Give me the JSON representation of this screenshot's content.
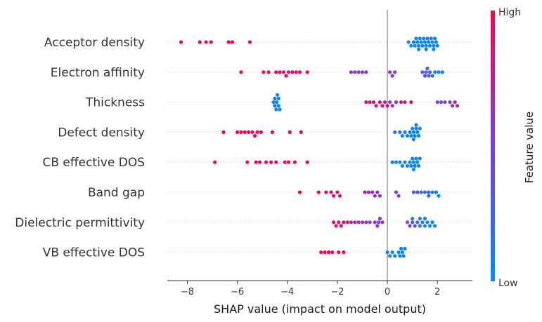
{
  "chart_data": {
    "type": "scatter",
    "subtype": "shap-beeswarm",
    "xlabel": "SHAP value (impact on model output)",
    "xlim": [
      -8.8,
      3.4
    ],
    "xticks": [
      -8,
      -6,
      -4,
      -2,
      0,
      2
    ],
    "x_tick_labels": [
      "−8",
      "−6",
      "−4",
      "−2",
      "0",
      "2"
    ],
    "zero_line": true,
    "colorbar": {
      "title": "Feature value",
      "high_label": "High",
      "low_label": "Low",
      "low_color": "#008bfb",
      "mid_color": "#7c3ee0",
      "high_color": "#ff0052"
    },
    "features": [
      {
        "name": "Acceptor density",
        "points": [
          [
            -8.25,
            1.0
          ],
          [
            -7.5,
            1.0
          ],
          [
            -7.25,
            0.95
          ],
          [
            -7.05,
            0.95
          ],
          [
            -6.35,
            1.0
          ],
          [
            -6.2,
            1.0
          ],
          [
            -5.5,
            1.0
          ],
          [
            0.85,
            0.05
          ],
          [
            0.95,
            0.0
          ],
          [
            1.05,
            0.1
          ],
          [
            1.1,
            0.05
          ],
          [
            1.15,
            0.0
          ],
          [
            1.2,
            0.05
          ],
          [
            1.25,
            0.1
          ],
          [
            1.3,
            0.0
          ],
          [
            1.35,
            0.05
          ],
          [
            1.4,
            0.0
          ],
          [
            1.45,
            0.1
          ],
          [
            1.5,
            0.05
          ],
          [
            1.55,
            0.0
          ],
          [
            1.6,
            0.05
          ],
          [
            1.65,
            0.1
          ],
          [
            1.7,
            0.0
          ],
          [
            1.75,
            0.05
          ],
          [
            1.8,
            0.0
          ],
          [
            1.85,
            0.1
          ],
          [
            1.9,
            0.05
          ],
          [
            1.95,
            0.0
          ],
          [
            2.0,
            0.05
          ],
          [
            1.25,
            0.02
          ],
          [
            1.55,
            0.08
          ],
          [
            1.85,
            0.03
          ]
        ]
      },
      {
        "name": "Electron affinity",
        "points": [
          [
            -5.85,
            1.0
          ],
          [
            -4.95,
            1.0
          ],
          [
            -4.75,
            0.95
          ],
          [
            -4.45,
            0.9
          ],
          [
            -4.3,
            0.95
          ],
          [
            -4.15,
            0.9
          ],
          [
            -4.05,
            0.95
          ],
          [
            -3.95,
            0.9
          ],
          [
            -3.8,
            0.95
          ],
          [
            -3.65,
            0.9
          ],
          [
            -3.5,
            0.95
          ],
          [
            -3.2,
            1.0
          ],
          [
            -1.45,
            0.6
          ],
          [
            -1.3,
            0.6
          ],
          [
            -1.15,
            0.6
          ],
          [
            -1.0,
            0.6
          ],
          [
            -0.85,
            0.6
          ],
          [
            0.1,
            0.55
          ],
          [
            0.2,
            0.55
          ],
          [
            0.3,
            0.5
          ],
          [
            1.4,
            0.3
          ],
          [
            1.5,
            0.35
          ],
          [
            1.6,
            0.4
          ],
          [
            1.65,
            0.25
          ],
          [
            1.7,
            0.3
          ],
          [
            1.8,
            0.2
          ],
          [
            1.9,
            0.1
          ],
          [
            2.05,
            0.0
          ],
          [
            2.2,
            0.05
          ],
          [
            1.55,
            0.3
          ]
        ]
      },
      {
        "name": "Thickness",
        "points": [
          [
            -4.55,
            0.05
          ],
          [
            -4.5,
            0.05
          ],
          [
            -4.45,
            0.05
          ],
          [
            -4.4,
            0.05
          ],
          [
            -4.35,
            0.05
          ],
          [
            -4.3,
            0.05
          ],
          [
            -4.5,
            0.08
          ],
          [
            -4.35,
            0.08
          ],
          [
            -4.42,
            0.02
          ],
          [
            -0.85,
            0.9
          ],
          [
            -0.7,
            0.9
          ],
          [
            -0.55,
            0.9
          ],
          [
            -0.45,
            0.85
          ],
          [
            -0.3,
            0.9
          ],
          [
            -0.2,
            0.9
          ],
          [
            -0.1,
            0.85
          ],
          [
            0.0,
            0.9
          ],
          [
            0.1,
            0.5
          ],
          [
            0.2,
            0.55
          ],
          [
            0.35,
            0.6
          ],
          [
            0.55,
            0.75
          ],
          [
            0.7,
            0.8
          ],
          [
            0.95,
            0.95
          ],
          [
            2.0,
            0.45
          ],
          [
            2.15,
            0.4
          ],
          [
            2.3,
            0.45
          ],
          [
            2.5,
            0.55
          ],
          [
            2.6,
            0.6
          ],
          [
            2.7,
            0.65
          ],
          [
            2.8,
            0.7
          ]
        ]
      },
      {
        "name": "Defect density",
        "points": [
          [
            -6.55,
            1.0
          ],
          [
            -6.0,
            1.0
          ],
          [
            -5.85,
            1.0
          ],
          [
            -5.7,
            0.95
          ],
          [
            -5.55,
            0.95
          ],
          [
            -5.4,
            0.95
          ],
          [
            -5.3,
            1.0
          ],
          [
            -5.2,
            1.0
          ],
          [
            -5.05,
            1.0
          ],
          [
            -4.6,
            1.0
          ],
          [
            -3.9,
            1.0
          ],
          [
            -3.45,
            1.0
          ],
          [
            0.3,
            0.05
          ],
          [
            0.5,
            0.05
          ],
          [
            0.6,
            0.05
          ],
          [
            0.7,
            0.05
          ],
          [
            0.8,
            0.0
          ],
          [
            0.9,
            0.05
          ],
          [
            1.0,
            0.05
          ],
          [
            1.05,
            0.0
          ],
          [
            1.1,
            0.05
          ],
          [
            1.15,
            0.05
          ],
          [
            1.2,
            0.0
          ],
          [
            1.25,
            0.05
          ],
          [
            1.3,
            0.05
          ],
          [
            0.95,
            0.05
          ],
          [
            1.05,
            0.08
          ],
          [
            1.15,
            0.02
          ]
        ]
      },
      {
        "name": "CB effective DOS",
        "points": [
          [
            -6.9,
            1.0
          ],
          [
            -5.6,
            1.0
          ],
          [
            -5.25,
            1.0
          ],
          [
            -5.1,
            1.0
          ],
          [
            -4.85,
            1.0
          ],
          [
            -4.65,
            1.0
          ],
          [
            -4.45,
            1.0
          ],
          [
            -4.1,
            1.0
          ],
          [
            -3.95,
            1.0
          ],
          [
            -3.7,
            1.0
          ],
          [
            -3.2,
            1.0
          ],
          [
            0.2,
            0.05
          ],
          [
            0.35,
            0.05
          ],
          [
            0.5,
            0.05
          ],
          [
            0.6,
            0.05
          ],
          [
            0.7,
            0.05
          ],
          [
            0.8,
            0.0
          ],
          [
            0.9,
            0.05
          ],
          [
            1.0,
            0.05
          ],
          [
            1.05,
            0.0
          ],
          [
            1.1,
            0.05
          ],
          [
            1.15,
            0.05
          ],
          [
            1.2,
            0.0
          ],
          [
            1.25,
            0.05
          ],
          [
            1.3,
            0.05
          ],
          [
            0.95,
            0.05
          ],
          [
            1.05,
            0.02
          ]
        ]
      },
      {
        "name": "Band gap",
        "points": [
          [
            -3.5,
            1.0
          ],
          [
            -2.75,
            1.0
          ],
          [
            -2.45,
            0.95
          ],
          [
            -2.25,
            0.9
          ],
          [
            -2.15,
            0.9
          ],
          [
            -2.0,
            0.9
          ],
          [
            -1.9,
            0.9
          ],
          [
            -0.9,
            0.7
          ],
          [
            -0.75,
            0.65
          ],
          [
            -0.6,
            0.6
          ],
          [
            -0.5,
            0.6
          ],
          [
            -0.4,
            0.6
          ],
          [
            -0.3,
            0.55
          ],
          [
            0.35,
            0.5
          ],
          [
            0.45,
            0.45
          ],
          [
            1.05,
            0.3
          ],
          [
            1.2,
            0.3
          ],
          [
            1.35,
            0.25
          ],
          [
            1.5,
            0.2
          ],
          [
            1.65,
            0.15
          ],
          [
            1.8,
            0.1
          ],
          [
            1.95,
            0.05
          ],
          [
            2.05,
            0.0
          ],
          [
            1.65,
            0.25
          ]
        ]
      },
      {
        "name": "Dielectric permittivity",
        "points": [
          [
            -2.15,
            0.9
          ],
          [
            -2.05,
            0.9
          ],
          [
            -1.95,
            0.9
          ],
          [
            -1.85,
            0.9
          ],
          [
            -1.75,
            0.9
          ],
          [
            -1.6,
            0.8
          ],
          [
            -1.45,
            0.75
          ],
          [
            -1.3,
            0.7
          ],
          [
            -1.15,
            0.7
          ],
          [
            -1.0,
            0.65
          ],
          [
            -0.85,
            0.6
          ],
          [
            -0.7,
            0.6
          ],
          [
            -0.5,
            0.55
          ],
          [
            -0.4,
            0.55
          ],
          [
            -0.3,
            0.55
          ],
          [
            -0.2,
            0.55
          ],
          [
            -0.35,
            0.55
          ],
          [
            0.8,
            0.45
          ],
          [
            0.9,
            0.4
          ],
          [
            1.0,
            0.35
          ],
          [
            1.1,
            0.3
          ],
          [
            1.2,
            0.25
          ],
          [
            1.3,
            0.2
          ],
          [
            1.4,
            0.15
          ],
          [
            1.5,
            0.1
          ],
          [
            1.6,
            0.05
          ],
          [
            1.7,
            0.0
          ],
          [
            1.8,
            0.05
          ],
          [
            1.9,
            0.0
          ],
          [
            1.0,
            0.1
          ],
          [
            1.3,
            0.1
          ],
          [
            1.5,
            0.05
          ]
        ]
      },
      {
        "name": "VB effective DOS",
        "points": [
          [
            -2.65,
            1.0
          ],
          [
            -2.5,
            1.0
          ],
          [
            -2.35,
            1.0
          ],
          [
            -2.2,
            1.0
          ],
          [
            -1.95,
            1.0
          ],
          [
            -1.75,
            1.0
          ],
          [
            0.0,
            0.05
          ],
          [
            0.1,
            0.05
          ],
          [
            0.2,
            0.05
          ],
          [
            0.3,
            0.05
          ],
          [
            0.45,
            0.0
          ],
          [
            0.55,
            0.05
          ],
          [
            0.6,
            0.0
          ],
          [
            0.7,
            0.05
          ],
          [
            0.65,
            0.0
          ],
          [
            0.5,
            0.05
          ]
        ]
      }
    ]
  }
}
